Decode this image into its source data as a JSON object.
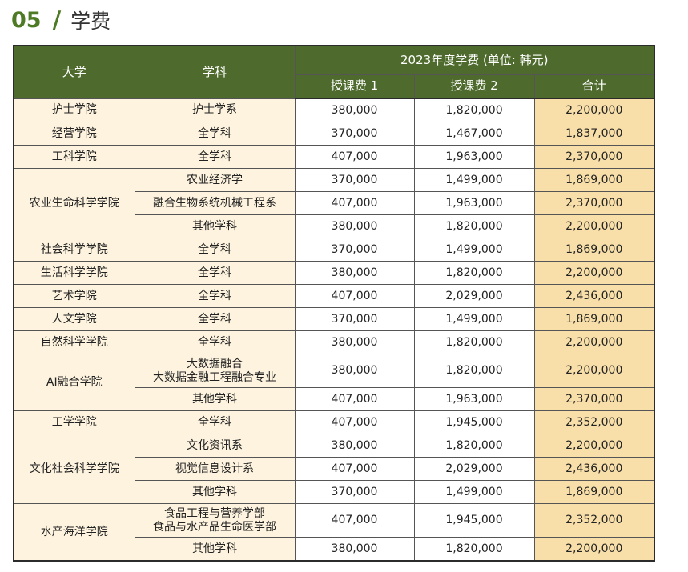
{
  "header": {
    "number": "05",
    "separator": "/",
    "title": "学费"
  },
  "table": {
    "col_university": "大学",
    "col_department": "学科",
    "group_header": "2023年度学费 (单位: 韩元)",
    "col_fee1": "授课费 1",
    "col_fee2": "授课费 2",
    "col_total": "合计",
    "rows": [
      {
        "uni": "护士学院",
        "uni_span": 1,
        "dept": "护士学系",
        "fee1": "380,000",
        "fee2": "1,820,000",
        "total": "2,200,000"
      },
      {
        "uni": "经营学院",
        "uni_span": 1,
        "dept": "全学科",
        "fee1": "370,000",
        "fee2": "1,467,000",
        "total": "1,837,000"
      },
      {
        "uni": "工科学院",
        "uni_span": 1,
        "dept": "全学科",
        "fee1": "407,000",
        "fee2": "1,963,000",
        "total": "2,370,000"
      },
      {
        "uni": "农业生命科学学院",
        "uni_span": 3,
        "dept": "农业经济学",
        "fee1": "370,000",
        "fee2": "1,499,000",
        "total": "1,869,000"
      },
      {
        "uni": null,
        "dept": "融合生物系统机械工程系",
        "fee1": "407,000",
        "fee2": "1,963,000",
        "total": "2,370,000"
      },
      {
        "uni": null,
        "dept": "其他学科",
        "fee1": "380,000",
        "fee2": "1,820,000",
        "total": "2,200,000"
      },
      {
        "uni": "社会科学学院",
        "uni_span": 1,
        "dept": "全学科",
        "fee1": "370,000",
        "fee2": "1,499,000",
        "total": "1,869,000"
      },
      {
        "uni": "生活科学学院",
        "uni_span": 1,
        "dept": "全学科",
        "fee1": "380,000",
        "fee2": "1,820,000",
        "total": "2,200,000"
      },
      {
        "uni": "艺术学院",
        "uni_span": 1,
        "dept": "全学科",
        "fee1": "407,000",
        "fee2": "2,029,000",
        "total": "2,436,000"
      },
      {
        "uni": "人文学院",
        "uni_span": 1,
        "dept": "全学科",
        "fee1": "370,000",
        "fee2": "1,499,000",
        "total": "1,869,000"
      },
      {
        "uni": "自然科学学院",
        "uni_span": 1,
        "dept": "全学科",
        "fee1": "380,000",
        "fee2": "1,820,000",
        "total": "2,200,000"
      },
      {
        "uni": "AI融合学院",
        "uni_span": 2,
        "dept": "大数据融合",
        "dept2": "大数据金融工程融合专业",
        "fee1": "380,000",
        "fee2": "1,820,000",
        "total": "2,200,000"
      },
      {
        "uni": null,
        "dept": "其他学科",
        "fee1": "407,000",
        "fee2": "1,963,000",
        "total": "2,370,000"
      },
      {
        "uni": "工学学院",
        "uni_span": 1,
        "dept": "全学科",
        "fee1": "407,000",
        "fee2": "1,945,000",
        "total": "2,352,000"
      },
      {
        "uni": "文化社会科学学院",
        "uni_span": 3,
        "dept": "文化资讯系",
        "fee1": "380,000",
        "fee2": "1,820,000",
        "total": "2,200,000"
      },
      {
        "uni": null,
        "dept": "视觉信息设计系",
        "fee1": "407,000",
        "fee2": "2,029,000",
        "total": "2,436,000"
      },
      {
        "uni": null,
        "dept": "其他学科",
        "fee1": "370,000",
        "fee2": "1,499,000",
        "total": "1,869,000"
      },
      {
        "uni": "水产海洋学院",
        "uni_span": 2,
        "dept": "食品工程与营养学部",
        "dept2": "食品与水产品生命医学部",
        "fee1": "407,000",
        "fee2": "1,945,000",
        "total": "2,352,000"
      },
      {
        "uni": null,
        "dept": "其他学科",
        "fee1": "380,000",
        "fee2": "1,820,000",
        "total": "2,200,000"
      }
    ]
  }
}
